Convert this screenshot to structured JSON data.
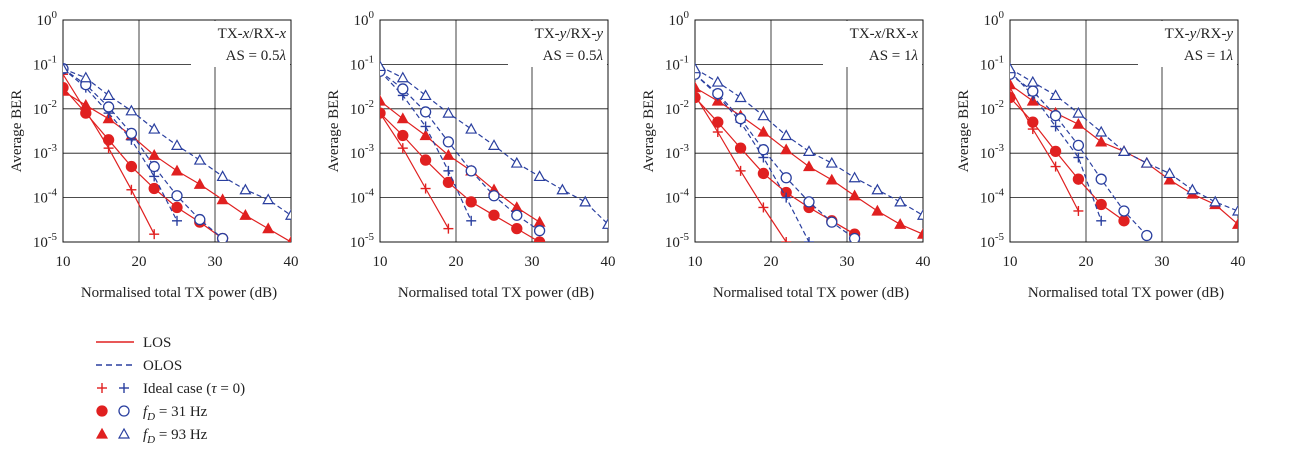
{
  "colors": {
    "los": "#e02020",
    "olos": "#2a3f9f",
    "grid": "#111111",
    "text": "#222222"
  },
  "legend": {
    "items": [
      {
        "label": "LOS",
        "style": "solid",
        "marker": "none"
      },
      {
        "label": "OLOS",
        "style": "dashed",
        "marker": "none"
      },
      {
        "label": "Ideal case (τ = 0)",
        "style": "none",
        "marker": "plus"
      },
      {
        "label": "fD = 31 Hz",
        "style": "none",
        "marker": "circle"
      },
      {
        "label": "fD = 93 Hz",
        "style": "none",
        "marker": "triangle"
      }
    ]
  },
  "chart_data": [
    {
      "type": "line",
      "yscale": "log",
      "annotation": [
        "TX-x/RX-x",
        "AS = 0.5λ"
      ],
      "xlabel": "Normalised total TX power (dB)",
      "ylabel": "Average BER",
      "xlim": [
        10,
        40
      ],
      "ylim": [
        1e-05,
        1
      ],
      "xticks": [
        10,
        20,
        30,
        40
      ],
      "yticks": [
        "10^0",
        "10^-1",
        "10^-2",
        "10^-3",
        "10^-4",
        "10^-5"
      ],
      "grid": true,
      "series": [
        {
          "name": "LOS, Ideal case (τ = 0)",
          "color": "los",
          "dash": false,
          "marker": "plus",
          "x": [
            10,
            13,
            16,
            19,
            22
          ],
          "y": [
            0.06,
            0.009,
            0.0013,
            0.00015,
            1.5e-05
          ]
        },
        {
          "name": "LOS, fD = 31 Hz",
          "color": "los",
          "dash": false,
          "marker": "circle",
          "x": [
            10,
            13,
            16,
            19,
            22,
            25,
            28,
            31
          ],
          "y": [
            0.03,
            0.008,
            0.002,
            0.0005,
            0.00016,
            6e-05,
            2.8e-05,
            1.2e-05
          ]
        },
        {
          "name": "LOS, fD = 93 Hz",
          "color": "los",
          "dash": false,
          "marker": "triangle",
          "x": [
            10,
            13,
            16,
            19,
            22,
            25,
            28,
            31,
            34,
            37,
            40
          ],
          "y": [
            0.025,
            0.012,
            0.006,
            0.0025,
            0.0009,
            0.0004,
            0.0002,
            9e-05,
            4e-05,
            2e-05,
            1e-05
          ]
        },
        {
          "name": "OLOS, Ideal case (τ = 0)",
          "color": "olos",
          "dash": true,
          "marker": "plus",
          "x": [
            10,
            13,
            16,
            19,
            22,
            25
          ],
          "y": [
            0.08,
            0.03,
            0.008,
            0.002,
            0.0003,
            3e-05
          ]
        },
        {
          "name": "OLOS, fD = 31 Hz",
          "color": "olos",
          "dash": true,
          "marker": "circle",
          "x": [
            10,
            13,
            16,
            19,
            22,
            25,
            28,
            31
          ],
          "y": [
            0.08,
            0.035,
            0.011,
            0.0028,
            0.0005,
            0.00011,
            3.2e-05,
            1.2e-05
          ]
        },
        {
          "name": "OLOS, fD = 93 Hz",
          "color": "olos",
          "dash": true,
          "marker": "triangle",
          "x": [
            10,
            13,
            16,
            19,
            22,
            25,
            28,
            31,
            34,
            37,
            40
          ],
          "y": [
            0.08,
            0.05,
            0.02,
            0.009,
            0.0035,
            0.0015,
            0.0007,
            0.0003,
            0.00015,
            9e-05,
            4e-05
          ]
        }
      ]
    },
    {
      "type": "line",
      "yscale": "log",
      "annotation": [
        "TX-y/RX-y",
        "AS = 0.5λ"
      ],
      "xlabel": "Normalised total TX power (dB)",
      "ylabel": "Average BER",
      "xlim": [
        10,
        40
      ],
      "ylim": [
        1e-05,
        1
      ],
      "xticks": [
        10,
        20,
        30,
        40
      ],
      "yticks": [
        "10^0",
        "10^-1",
        "10^-2",
        "10^-3",
        "10^-4",
        "10^-5"
      ],
      "grid": true,
      "series": [
        {
          "name": "LOS, Ideal case (τ = 0)",
          "color": "los",
          "dash": false,
          "marker": "plus",
          "x": [
            10,
            13,
            16,
            19
          ],
          "y": [
            0.008,
            0.0013,
            0.00016,
            2e-05
          ]
        },
        {
          "name": "LOS, fD = 31 Hz",
          "color": "los",
          "dash": false,
          "marker": "circle",
          "x": [
            10,
            13,
            16,
            19,
            22,
            25,
            28,
            31
          ],
          "y": [
            0.008,
            0.0025,
            0.0007,
            0.00022,
            8e-05,
            4e-05,
            2e-05,
            1e-05
          ]
        },
        {
          "name": "LOS, fD = 93 Hz",
          "color": "los",
          "dash": false,
          "marker": "triangle",
          "x": [
            10,
            13,
            16,
            19,
            22,
            25,
            28,
            31
          ],
          "y": [
            0.015,
            0.006,
            0.0025,
            0.0009,
            0.0004,
            0.00015,
            6e-05,
            2.8e-05
          ]
        },
        {
          "name": "OLOS, Ideal case (τ = 0)",
          "color": "olos",
          "dash": true,
          "marker": "plus",
          "x": [
            10,
            13,
            16,
            19,
            22
          ],
          "y": [
            0.07,
            0.02,
            0.004,
            0.0004,
            3e-05
          ]
        },
        {
          "name": "OLOS, fD = 31 Hz",
          "color": "olos",
          "dash": true,
          "marker": "circle",
          "x": [
            10,
            13,
            16,
            19,
            22,
            25,
            28,
            31
          ],
          "y": [
            0.07,
            0.028,
            0.0085,
            0.0018,
            0.0004,
            0.00011,
            4e-05,
            1.8e-05
          ]
        },
        {
          "name": "OLOS, fD = 93 Hz",
          "color": "olos",
          "dash": true,
          "marker": "triangle",
          "x": [
            10,
            13,
            16,
            19,
            22,
            25,
            28,
            31,
            34,
            37,
            40
          ],
          "y": [
            0.09,
            0.05,
            0.02,
            0.008,
            0.0035,
            0.0015,
            0.0006,
            0.0003,
            0.00015,
            8e-05,
            2.5e-05
          ]
        }
      ]
    },
    {
      "type": "line",
      "yscale": "log",
      "annotation": [
        "TX-x/RX-x",
        "AS = 1λ"
      ],
      "xlabel": "Normalised total TX power (dB)",
      "ylabel": "Average BER",
      "xlim": [
        10,
        40
      ],
      "ylim": [
        1e-05,
        1
      ],
      "xticks": [
        10,
        20,
        30,
        40
      ],
      "yticks": [
        "10^0",
        "10^-1",
        "10^-2",
        "10^-3",
        "10^-4",
        "10^-5"
      ],
      "grid": true,
      "series": [
        {
          "name": "LOS, Ideal case (τ = 0)",
          "color": "los",
          "dash": false,
          "marker": "plus",
          "x": [
            10,
            13,
            16,
            19,
            22
          ],
          "y": [
            0.02,
            0.003,
            0.0004,
            6e-05,
            1e-05
          ]
        },
        {
          "name": "LOS, fD = 31 Hz",
          "color": "los",
          "dash": false,
          "marker": "circle",
          "x": [
            10,
            13,
            16,
            19,
            22,
            25,
            28,
            31
          ],
          "y": [
            0.018,
            0.005,
            0.0013,
            0.00035,
            0.00013,
            6e-05,
            3e-05,
            1.5e-05
          ]
        },
        {
          "name": "LOS, fD = 93 Hz",
          "color": "los",
          "dash": false,
          "marker": "triangle",
          "x": [
            10,
            13,
            16,
            19,
            22,
            25,
            28,
            31,
            34,
            37,
            40
          ],
          "y": [
            0.03,
            0.015,
            0.007,
            0.003,
            0.0012,
            0.0005,
            0.00025,
            0.00011,
            5e-05,
            2.5e-05,
            1.5e-05
          ]
        },
        {
          "name": "OLOS, Ideal case (τ = 0)",
          "color": "olos",
          "dash": true,
          "marker": "plus",
          "x": [
            10,
            13,
            16,
            19,
            22,
            25
          ],
          "y": [
            0.06,
            0.02,
            0.005,
            0.0008,
            0.0001,
            1e-05
          ]
        },
        {
          "name": "OLOS, fD = 31 Hz",
          "color": "olos",
          "dash": true,
          "marker": "circle",
          "x": [
            10,
            13,
            16,
            19,
            22,
            25,
            28,
            31
          ],
          "y": [
            0.06,
            0.022,
            0.006,
            0.0012,
            0.00028,
            8e-05,
            2.8e-05,
            1.2e-05
          ]
        },
        {
          "name": "OLOS, fD = 93 Hz",
          "color": "olos",
          "dash": true,
          "marker": "triangle",
          "x": [
            10,
            13,
            16,
            19,
            22,
            25,
            28,
            31,
            34,
            37,
            40
          ],
          "y": [
            0.08,
            0.04,
            0.018,
            0.007,
            0.0025,
            0.0011,
            0.0006,
            0.00028,
            0.00015,
            8e-05,
            4e-05
          ]
        }
      ]
    },
    {
      "type": "line",
      "yscale": "log",
      "annotation": [
        "TX-y/RX-y",
        "AS = 1λ"
      ],
      "xlabel": "Normalised total TX power (dB)",
      "ylabel": "Average BER",
      "xlim": [
        10,
        40
      ],
      "ylim": [
        1e-05,
        1
      ],
      "xticks": [
        10,
        20,
        30,
        40
      ],
      "yticks": [
        "10^0",
        "10^-1",
        "10^-2",
        "10^-3",
        "10^-4",
        "10^-5"
      ],
      "grid": true,
      "series": [
        {
          "name": "LOS, Ideal case (τ = 0)",
          "color": "los",
          "dash": false,
          "marker": "plus",
          "x": [
            10,
            13,
            16,
            19
          ],
          "y": [
            0.03,
            0.0035,
            0.0005,
            5e-05
          ]
        },
        {
          "name": "LOS, fD = 31 Hz",
          "color": "los",
          "dash": false,
          "marker": "circle",
          "x": [
            10,
            13,
            16,
            19,
            22,
            25
          ],
          "y": [
            0.018,
            0.005,
            0.0011,
            0.00026,
            7e-05,
            3e-05
          ]
        },
        {
          "name": "LOS, fD = 93 Hz",
          "color": "los",
          "dash": false,
          "marker": "triangle",
          "x": [
            10,
            13,
            16,
            19,
            22,
            25,
            28,
            31,
            34,
            37,
            40
          ],
          "y": [
            0.035,
            0.015,
            0.008,
            0.0045,
            0.0018,
            0.0011,
            0.0006,
            0.00025,
            0.00012,
            7e-05,
            2.5e-05
          ]
        },
        {
          "name": "OLOS, Ideal case (τ = 0)",
          "color": "olos",
          "dash": true,
          "marker": "plus",
          "x": [
            10,
            13,
            16,
            19,
            22
          ],
          "y": [
            0.07,
            0.02,
            0.004,
            0.0008,
            3e-05
          ]
        },
        {
          "name": "OLOS, fD = 31 Hz",
          "color": "olos",
          "dash": true,
          "marker": "circle",
          "x": [
            10,
            13,
            16,
            19,
            22,
            25,
            28
          ],
          "y": [
            0.06,
            0.025,
            0.007,
            0.0015,
            0.00026,
            5e-05,
            1.4e-05
          ]
        },
        {
          "name": "OLOS, fD = 93 Hz",
          "color": "olos",
          "dash": true,
          "marker": "triangle",
          "x": [
            10,
            13,
            16,
            19,
            22,
            25,
            28,
            31,
            34,
            37,
            40
          ],
          "y": [
            0.08,
            0.04,
            0.02,
            0.008,
            0.003,
            0.0011,
            0.0006,
            0.00035,
            0.00015,
            8e-05,
            5e-05
          ]
        }
      ]
    }
  ]
}
